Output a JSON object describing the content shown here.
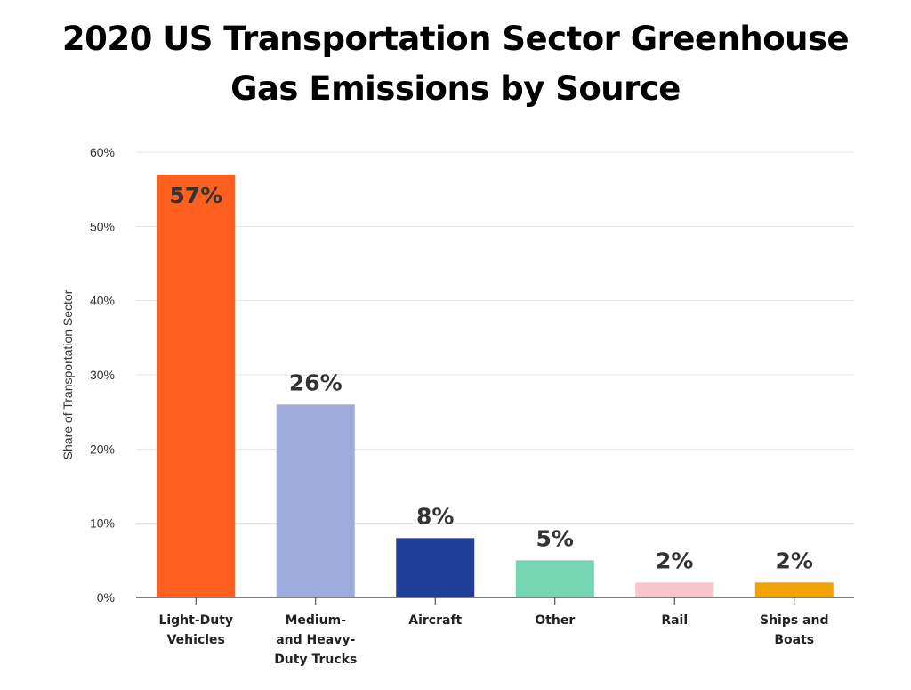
{
  "chart_data": {
    "type": "bar",
    "title": "2020 US Transportation Sector Greenhouse Gas Emissions by Source",
    "title_lines": [
      "2020 US Transportation Sector Greenhouse",
      "Gas Emissions by Source"
    ],
    "ylabel": "Share of Transportation Sector",
    "xlabel": "",
    "ylim": [
      0,
      60
    ],
    "yticks": [
      0,
      10,
      20,
      30,
      40,
      50,
      60
    ],
    "ytick_labels": [
      "0%",
      "10%",
      "20%",
      "30%",
      "40%",
      "50%",
      "60%"
    ],
    "grid": true,
    "categories": [
      "Light-Duty Vehicles",
      "Medium- and Heavy-Duty Trucks",
      "Aircraft",
      "Other",
      "Rail",
      "Ships and Boats"
    ],
    "category_label_lines": [
      [
        "Light-Duty",
        "Vehicles"
      ],
      [
        "Medium-",
        "and Heavy-",
        "Duty Trucks"
      ],
      [
        "Aircraft"
      ],
      [
        "Other"
      ],
      [
        "Rail"
      ],
      [
        "Ships and",
        "Boats"
      ]
    ],
    "values": [
      57,
      26,
      8,
      5,
      2,
      2
    ],
    "data_labels": [
      "57%",
      "26%",
      "8%",
      "5%",
      "2%",
      "2%"
    ],
    "colors": [
      "#FF5F1F",
      "#9DACDB",
      "#1F3F99",
      "#74D6B2",
      "#F8C6CB",
      "#F2A300"
    ]
  }
}
